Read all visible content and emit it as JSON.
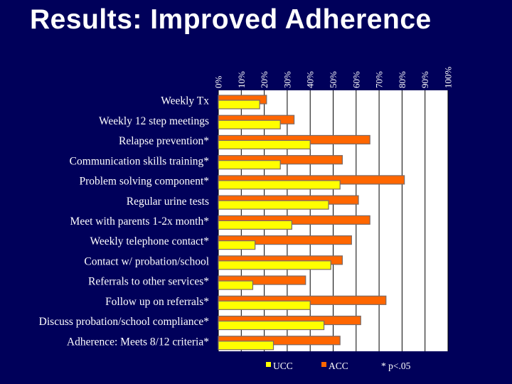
{
  "colors": {
    "background": "#00005a",
    "ucc": "#ffff00",
    "acc": "#ff6600",
    "bar_edge": "#7a6a66",
    "plot_area": "#ffffff"
  },
  "chart_data": {
    "type": "bar",
    "orientation": "horizontal",
    "title": "Results:  Improved Adherence",
    "xlabel": "",
    "ylabel": "",
    "xlim": [
      0,
      100
    ],
    "tick_labels": [
      "0%",
      "10%",
      "20%",
      "30%",
      "40%",
      "50%",
      "60%",
      "70%",
      "80%",
      "90%",
      "100%"
    ],
    "grid": true,
    "legend_position": "bottom",
    "footnote": "* p<.05",
    "categories": [
      "Weekly Tx",
      "Weekly 12 step meetings",
      "Relapse prevention*",
      "Communication skills training*",
      "Problem solving component*",
      "Regular urine tests",
      "Meet with parents 1-2x month*",
      "Weekly telephone contact*",
      "Contact w/ probation/school",
      "Referrals to other services*",
      "Follow up on referrals*",
      "Discuss probation/school compliance*",
      "Adherence: Meets 8/12 criteria*"
    ],
    "series": [
      {
        "name": "ACC",
        "values": [
          21,
          33,
          66,
          54,
          81,
          61,
          66,
          58,
          54,
          38,
          73,
          62,
          53
        ]
      },
      {
        "name": "UCC",
        "values": [
          18,
          27,
          40,
          27,
          53,
          48,
          32,
          16,
          49,
          15,
          40,
          46,
          24
        ]
      }
    ]
  }
}
